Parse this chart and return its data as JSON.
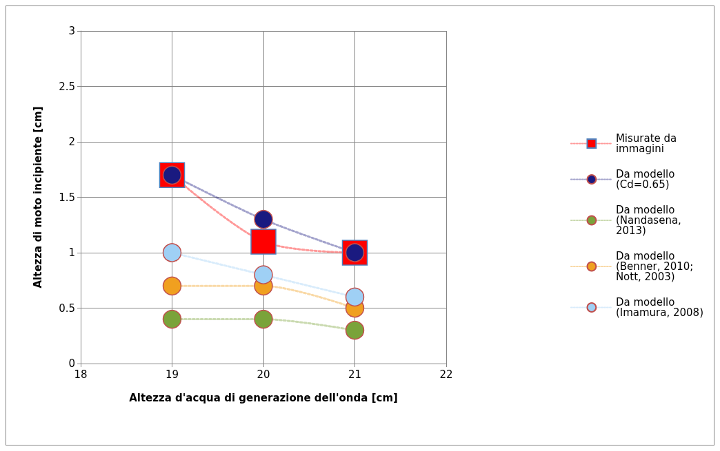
{
  "chart_data": {
    "type": "line",
    "xlabel": "Altezza d'acqua di generazione dell'onda [cm]",
    "ylabel": "Altezza di moto incipiente [cm]",
    "x": [
      19,
      20,
      21
    ],
    "xlim": [
      18,
      22
    ],
    "xticks": [
      18,
      19,
      20,
      21,
      22
    ],
    "ylim": [
      0,
      3
    ],
    "yticks": [
      0,
      0.5,
      1,
      1.5,
      2,
      2.5,
      3
    ],
    "grid": true,
    "legend": "right",
    "line_style": "dotted",
    "series": [
      {
        "name": "Misurate da immagini",
        "color": "#ff0000",
        "marker": "square",
        "values": [
          1.7,
          1.1,
          1.0
        ]
      },
      {
        "name": "Da modello (Cd=0.65)",
        "color": "#1a1a80",
        "marker": "circle",
        "values": [
          1.7,
          1.3,
          1.0
        ]
      },
      {
        "name": "Da modello (Nandasena, 2013)",
        "color": "#7aa33a",
        "marker": "circle",
        "values": [
          0.4,
          0.4,
          0.3
        ]
      },
      {
        "name": "Da modello (Benner, 2010; Nott, 2003)",
        "color": "#f0a020",
        "marker": "circle",
        "values": [
          0.7,
          0.7,
          0.5
        ]
      },
      {
        "name": "Da modello (Imamura, 2008)",
        "color": "#9fd0f5",
        "marker": "circle",
        "values": [
          1.0,
          0.8,
          0.6
        ]
      }
    ]
  }
}
